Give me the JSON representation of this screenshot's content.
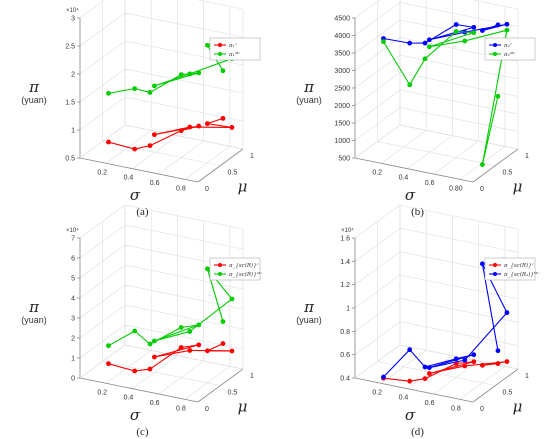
{
  "figure": {
    "background": "#ffffff"
  },
  "chart_data": [
    {
      "id": "a",
      "type": "line3d",
      "caption": "(a)",
      "xlabel": "σ",
      "ylabel": "μ",
      "zlabel": "π",
      "zunit": "(yuan)",
      "exponent_label": "×10⁴",
      "xlim": [
        0,
        0.9
      ],
      "ylim": [
        0,
        1
      ],
      "zlim": [
        0.5,
        3
      ],
      "x_ticks": [
        "0.2",
        "0.4",
        "0.6",
        "0.8"
      ],
      "y_ticks": [
        "0",
        "0.5",
        "1"
      ],
      "z_ticks": [
        "0.5",
        "1",
        "1.5",
        "2",
        "2.5",
        "3"
      ],
      "z_tick_values": [
        0.5,
        1,
        1.5,
        2,
        2.5,
        3
      ],
      "legend": [
        "π₁ᶜ",
        "π₁ᴹᶜ"
      ],
      "series": [
        {
          "name": "π₁ᶜ",
          "color": "#ff0000",
          "points": [
            [
              0.2,
              0.05,
              0.85
            ],
            [
              0.4,
              0.05,
              0.82
            ],
            [
              0.5,
              0.1,
              0.9
            ],
            [
              0.6,
              0.5,
              0.98
            ],
            [
              0.7,
              0.6,
              1.05
            ],
            [
              0.55,
              0.05,
              1.15
            ],
            [
              0.7,
              0.4,
              1.15
            ],
            [
              0.85,
              0.9,
              0.92
            ],
            [
              0.8,
              0.5,
              1.2
            ],
            [
              0.85,
              0.7,
              1.2
            ]
          ]
        },
        {
          "name": "π₁ᴹᶜ",
          "color": "#00cc00",
          "points": [
            [
              0.2,
              0.05,
              1.72
            ],
            [
              0.4,
              0.05,
              1.9
            ],
            [
              0.5,
              0.1,
              1.85
            ],
            [
              0.6,
              0.5,
              1.98
            ],
            [
              0.7,
              0.6,
              2.0
            ],
            [
              0.55,
              0.05,
              2.02
            ],
            [
              0.7,
              0.4,
              2.1
            ],
            [
              0.85,
              0.9,
              2.15
            ],
            [
              0.8,
              0.5,
              2.6
            ],
            [
              0.85,
              0.7,
              2.05
            ]
          ]
        }
      ]
    },
    {
      "id": "b",
      "type": "line3d",
      "caption": "(b)",
      "xlabel": "σ",
      "ylabel": "μ",
      "zlabel": "π",
      "zunit": "(yuan)",
      "exponent_label": "",
      "xlim": [
        0,
        0.9
      ],
      "ylim": [
        0,
        1
      ],
      "zlim": [
        500,
        4500
      ],
      "x_ticks": [
        "0.2",
        "0.4",
        "0.6",
        "0.8"
      ],
      "y_ticks": [
        "0",
        "0.5",
        "1"
      ],
      "x_tick_labels_shown": [
        "0.2",
        "0.4",
        "0.6",
        "0.80"
      ],
      "z_ticks": [
        "500",
        "1000",
        "1500",
        "2000",
        "2500",
        "3000",
        "3500",
        "4000",
        "4500"
      ],
      "z_tick_values": [
        500,
        1000,
        1500,
        2000,
        2500,
        3000,
        3500,
        4000,
        4500
      ],
      "legend": [
        "π₂ᶜ",
        "π₂ᴹᶜ"
      ],
      "series": [
        {
          "name": "π₂ᶜ",
          "color": "#0000ff",
          "points": [
            [
              0.2,
              0.05,
              4020
            ],
            [
              0.4,
              0.05,
              4040
            ],
            [
              0.5,
              0.1,
              4070
            ],
            [
              0.6,
              0.5,
              4300
            ],
            [
              0.7,
              0.6,
              4200
            ],
            [
              0.55,
              0.05,
              4250
            ],
            [
              0.7,
              0.4,
              4250
            ],
            [
              0.85,
              0.9,
              4120
            ],
            [
              0.8,
              0.5,
              4280
            ],
            [
              0.85,
              0.7,
              4290
            ]
          ]
        },
        {
          "name": "π₂ᴹᶜ",
          "color": "#00cc00",
          "points": [
            [
              0.2,
              0.05,
              3930
            ],
            [
              0.4,
              0.05,
              2850
            ],
            [
              0.5,
              0.1,
              3620
            ],
            [
              0.6,
              0.5,
              4100
            ],
            [
              0.7,
              0.6,
              4050
            ],
            [
              0.55,
              0.05,
              4050
            ],
            [
              0.7,
              0.4,
              4000
            ],
            [
              0.85,
              0.9,
              3950
            ],
            [
              0.8,
              0.5,
              450
            ],
            [
              0.85,
              0.7,
              2250
            ]
          ]
        }
      ]
    },
    {
      "id": "c",
      "type": "line3d",
      "caption": "(c)",
      "xlabel": "σ",
      "ylabel": "μ",
      "zlabel": "π",
      "zunit": "(yuan)",
      "exponent_label": "×10⁴",
      "xlim": [
        0,
        0.9
      ],
      "ylim": [
        0,
        1
      ],
      "zlim": [
        0,
        7
      ],
      "x_ticks": [
        "0.2",
        "0.4",
        "0.6",
        "0.8"
      ],
      "y_ticks": [
        "0",
        "0.5",
        "1"
      ],
      "z_ticks": [
        "0",
        "1",
        "2",
        "3",
        "4",
        "5",
        "6",
        "7"
      ],
      "z_tick_values": [
        0,
        1,
        2,
        3,
        4,
        5,
        6,
        7
      ],
      "legend": [
        "π_{sc(R)}ᶜ",
        "π_{sc(R)}ᴹᶜ"
      ],
      "series": [
        {
          "name": "π_{sc(R)}ᶜ",
          "color": "#ff0000",
          "points": [
            [
              0.2,
              0.05,
              0.9
            ],
            [
              0.4,
              0.05,
              0.8
            ],
            [
              0.5,
              0.1,
              0.95
            ],
            [
              0.6,
              0.5,
              1.5
            ],
            [
              0.7,
              0.6,
              1.6
            ],
            [
              0.55,
              0.05,
              1.7
            ],
            [
              0.7,
              0.4,
              1.65
            ],
            [
              0.85,
              0.9,
              1.0
            ],
            [
              0.8,
              0.5,
              1.6
            ],
            [
              0.85,
              0.7,
              1.7
            ]
          ]
        },
        {
          "name": "π_{sc(R)}ᴹᶜ",
          "color": "#00cc00",
          "points": [
            [
              0.2,
              0.05,
              1.8
            ],
            [
              0.4,
              0.05,
              2.8
            ],
            [
              0.5,
              0.1,
              2.2
            ],
            [
              0.6,
              0.5,
              2.5
            ],
            [
              0.7,
              0.6,
              2.6
            ],
            [
              0.55,
              0.05,
              2.5
            ],
            [
              0.7,
              0.4,
              2.6
            ],
            [
              0.85,
              0.9,
              3.6
            ],
            [
              0.8,
              0.5,
              5.7
            ],
            [
              0.85,
              0.7,
              2.8
            ]
          ]
        }
      ]
    },
    {
      "id": "d",
      "type": "line3d",
      "caption": "(d)",
      "xlabel": "σ",
      "ylabel": "μ",
      "zlabel": "π",
      "zunit": "(yuan)",
      "exponent_label": "×10⁴",
      "xlim": [
        0,
        0.9
      ],
      "ylim": [
        0,
        1
      ],
      "zlim": [
        0.4,
        1.6
      ],
      "x_ticks": [
        "0.2",
        "0.4",
        "0.6",
        "0.8"
      ],
      "y_ticks": [
        "0",
        "0.5",
        "1"
      ],
      "z_ticks": [
        "0.4",
        "0.6",
        "0.8",
        "1",
        "1.2",
        "1.4",
        "1.6"
      ],
      "z_tick_values": [
        0.4,
        0.6,
        0.8,
        1.0,
        1.2,
        1.4,
        1.6
      ],
      "legend": [
        "π_{sc(R)}ᶜ",
        "π_{sc(R₂)}ᴹᶜ"
      ],
      "series": [
        {
          "name": "π_{sc(R)}ᶜ",
          "color": "#ff0000",
          "points": [
            [
              0.2,
              0.05,
              0.43
            ],
            [
              0.4,
              0.05,
              0.45
            ],
            [
              0.5,
              0.1,
              0.48
            ],
            [
              0.6,
              0.5,
              0.52
            ],
            [
              0.7,
              0.6,
              0.53
            ],
            [
              0.55,
              0.05,
              0.55
            ],
            [
              0.7,
              0.4,
              0.55
            ],
            [
              0.85,
              0.9,
              0.48
            ],
            [
              0.8,
              0.5,
              0.55
            ],
            [
              0.85,
              0.7,
              0.52
            ]
          ]
        },
        {
          "name": "π_{sc(R₂)}ᴹᶜ",
          "color": "#0000ff",
          "points": [
            [
              0.2,
              0.05,
              0.44
            ],
            [
              0.4,
              0.05,
              0.72
            ],
            [
              0.5,
              0.1,
              0.58
            ],
            [
              0.6,
              0.5,
              0.56
            ],
            [
              0.7,
              0.6,
              0.59
            ],
            [
              0.55,
              0.05,
              0.6
            ],
            [
              0.7,
              0.4,
              0.6
            ],
            [
              0.85,
              0.9,
              0.9
            ],
            [
              0.8,
              0.5,
              1.42
            ],
            [
              0.85,
              0.7,
              0.63
            ]
          ]
        }
      ]
    }
  ]
}
